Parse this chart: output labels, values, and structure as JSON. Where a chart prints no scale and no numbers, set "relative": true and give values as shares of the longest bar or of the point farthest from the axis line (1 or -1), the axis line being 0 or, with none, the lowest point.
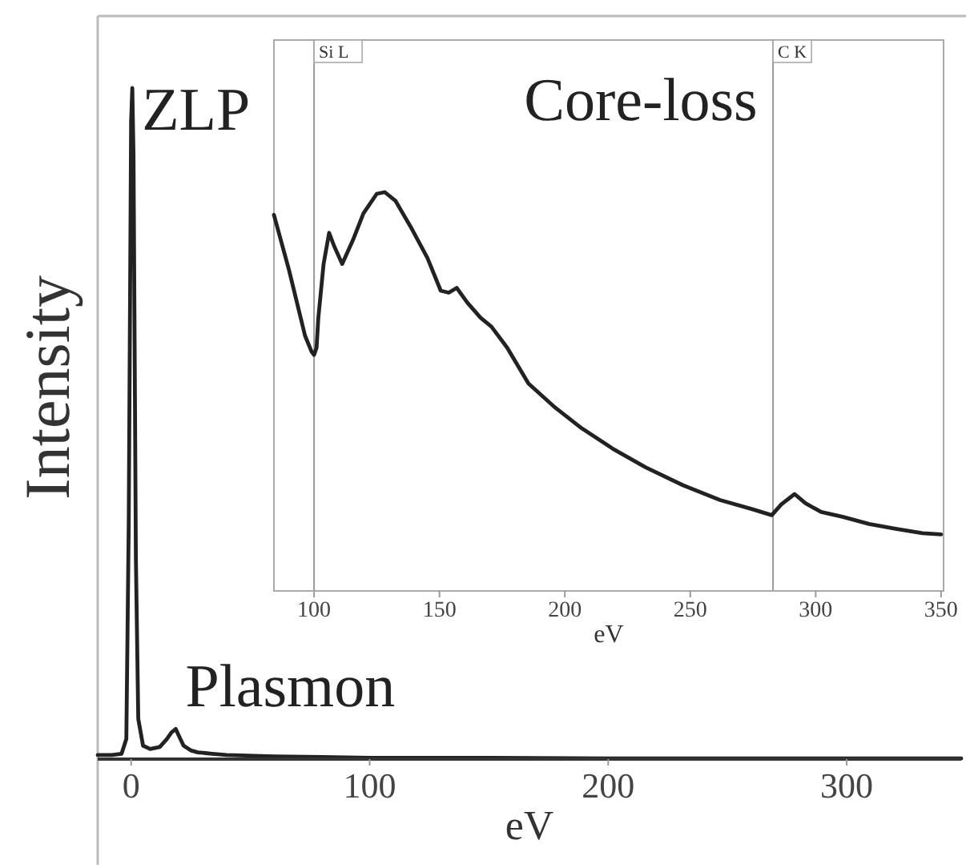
{
  "chart_data": [
    {
      "type": "line",
      "xlabel": "eV",
      "ylabel": "Intensity",
      "relative": true,
      "xlim": [
        -14,
        348
      ],
      "xticks": [
        0,
        100,
        200,
        300
      ],
      "tick_labels": "x",
      "line_style": "solid",
      "series": [
        {
          "color": "#222222",
          "x": [
            -14,
            -8,
            -4,
            -2,
            -1,
            0,
            0.5,
            1,
            2,
            3,
            5,
            8,
            12,
            15,
            17,
            18.7,
            20,
            22,
            25,
            28,
            34,
            40,
            60,
            80,
            100,
            150,
            200,
            250,
            300,
            348
          ],
          "values": [
            0.006,
            0.006,
            0.008,
            0.03,
            0.35,
            0.95,
            1,
            0.9,
            0.3,
            0.06,
            0.02,
            0.015,
            0.018,
            0.03,
            0.04,
            0.045,
            0.035,
            0.02,
            0.013,
            0.01,
            0.008,
            0.006,
            0.004,
            0.003,
            0.002,
            0.002,
            0.001,
            0.001,
            0.001,
            0.001
          ]
        }
      ],
      "annotations": [
        {
          "text": "ZLP",
          "x": 0.5,
          "y": 1
        },
        {
          "text": "Plasmon",
          "x": 18.7,
          "y": 0.045
        }
      ]
    },
    {
      "type": "line",
      "title": "Core-loss",
      "xlabel": "eV",
      "relative": true,
      "xlim": [
        84,
        351
      ],
      "xticks": [
        100,
        150,
        200,
        250,
        300,
        350
      ],
      "tick_labels": "x",
      "line_style": "solid",
      "series": [
        {
          "color": "#222222",
          "x": [
            84,
            90,
            96.4,
            99,
            100,
            101,
            101.7,
            103.8,
            106,
            108,
            111.2,
            115.5,
            119.7,
            125,
            128.2,
            132.5,
            138.8,
            145.2,
            150.5,
            153.7,
            156.9,
            161.1,
            166.4,
            170.7,
            177,
            185.5,
            196.1,
            206.7,
            219.5,
            232.2,
            247.1,
            261.9,
            274.7,
            282.5,
            286.3,
            291.6,
            295.9,
            302.2,
            310.7,
            321.3,
            331.9,
            342.6,
            350
          ],
          "values": [
            0.943,
            0.805,
            0.64,
            0.6,
            0.592,
            0.61,
            0.685,
            0.82,
            0.898,
            0.865,
            0.82,
            0.88,
            0.947,
            0.996,
            1,
            0.978,
            0.91,
            0.835,
            0.753,
            0.748,
            0.76,
            0.723,
            0.685,
            0.663,
            0.61,
            0.52,
            0.46,
            0.408,
            0.355,
            0.31,
            0.265,
            0.228,
            0.205,
            0.19,
            0.217,
            0.243,
            0.22,
            0.198,
            0.186,
            0.168,
            0.156,
            0.145,
            0.142
          ]
        }
      ],
      "ref_lines": [
        {
          "axis": "x",
          "value": 100,
          "label": "Si L",
          "color": "#999999"
        },
        {
          "axis": "x",
          "value": 283,
          "label": "C K",
          "color": "#999999"
        }
      ]
    }
  ]
}
